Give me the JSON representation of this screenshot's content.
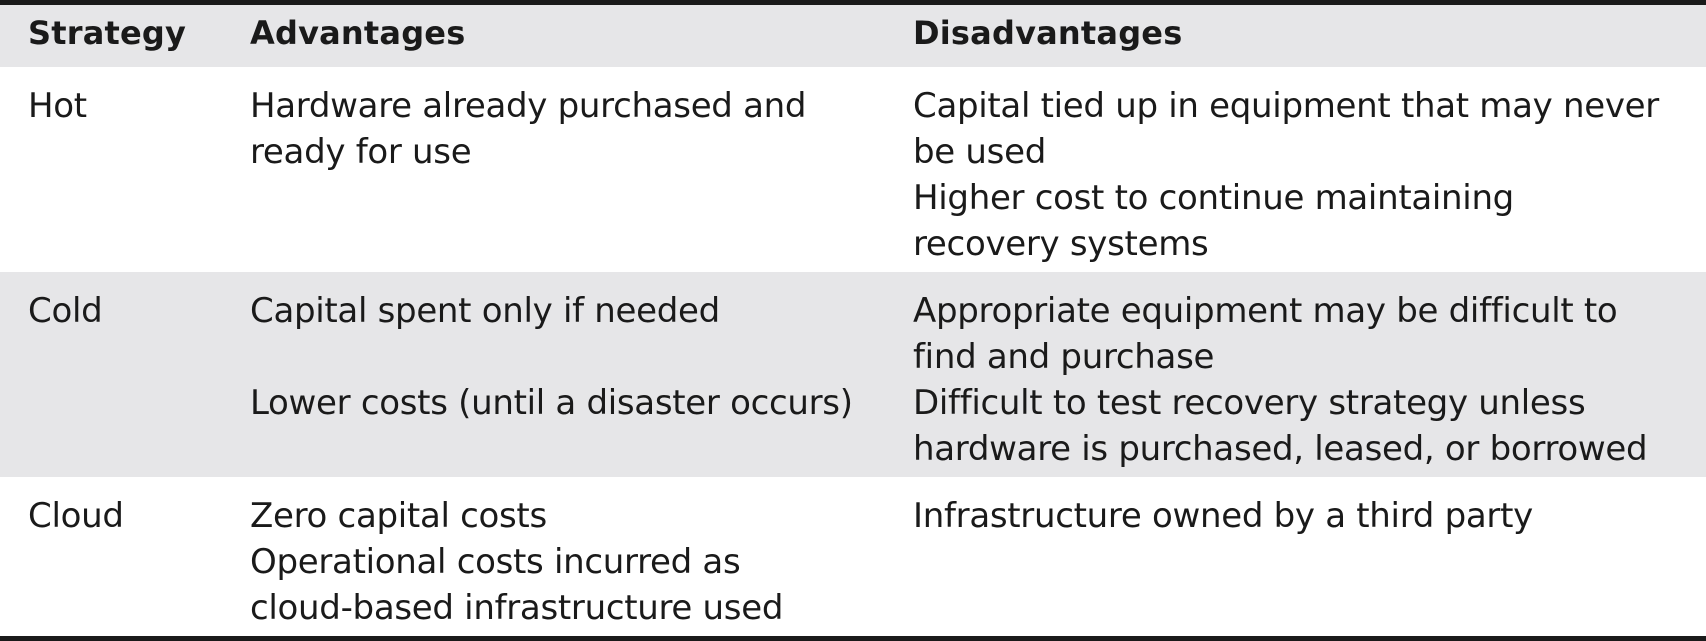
{
  "headers": {
    "strategy": "Strategy",
    "advantages": "Advantages",
    "disadvantages": "Disadvantages"
  },
  "rows": [
    {
      "strategy": "Hot",
      "advantages": [
        [
          "Hardware already purchased and",
          "ready for use"
        ]
      ],
      "disadvantages": [
        [
          "Capital tied up in equipment that may never",
          "be used"
        ],
        [
          "Higher cost to continue maintaining",
          "recovery systems"
        ]
      ]
    },
    {
      "strategy": "Cold",
      "advantages": [
        [
          "Capital spent only if needed"
        ],
        [
          "Lower costs (until a disaster occurs)"
        ]
      ],
      "disadvantages": [
        [
          "Appropriate equipment may be difficult to",
          "find and purchase"
        ],
        [
          "Difficult to test recovery strategy unless",
          "hardware is purchased, leased, or borrowed"
        ]
      ]
    },
    {
      "strategy": "Cloud",
      "advantages": [
        [
          "Zero capital costs"
        ],
        [
          "Operational costs incurred as",
          "cloud-based infrastructure used"
        ]
      ],
      "disadvantages": [
        [
          "Infrastructure owned by a third party"
        ]
      ]
    }
  ]
}
